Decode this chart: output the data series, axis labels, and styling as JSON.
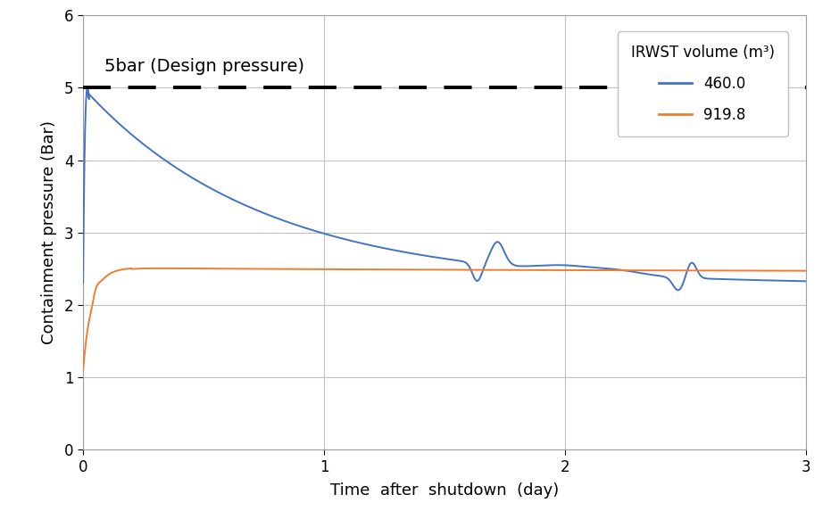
{
  "title": "",
  "xlabel": "Time  after  shutdown  (day)",
  "ylabel": "Containment pressure (Bar)",
  "xlim": [
    0,
    3
  ],
  "ylim": [
    0,
    6
  ],
  "xticks": [
    0,
    1,
    2,
    3
  ],
  "yticks": [
    0,
    1,
    2,
    3,
    4,
    5,
    6
  ],
  "design_pressure": 5.0,
  "design_pressure_label": "5bar (Design pressure)",
  "legend_title": "IRWST volume (m³)",
  "legend_entries": [
    "460.0",
    "919.8"
  ],
  "line_colors": [
    "#4472C4",
    "#ED7D31"
  ],
  "background_color": "#FFFFFF",
  "grid_color": "#C0C0C0"
}
